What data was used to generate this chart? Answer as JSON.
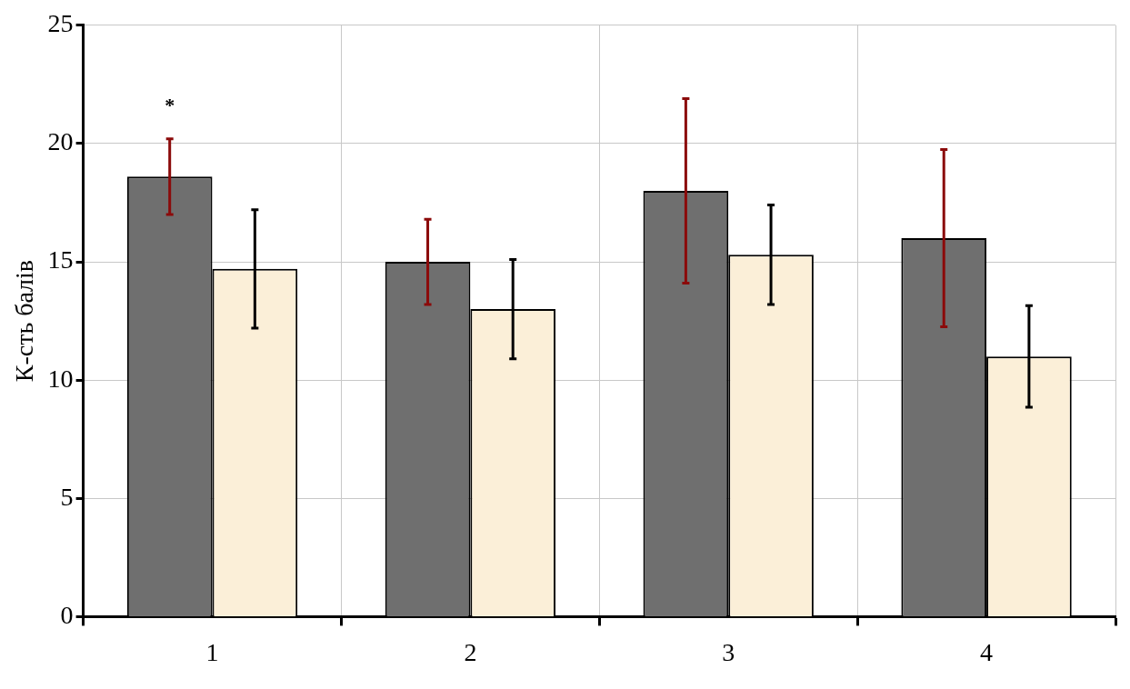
{
  "chart_data": {
    "type": "bar",
    "ylabel": "К-сть балів",
    "categories": [
      "1",
      "2",
      "3",
      "4"
    ],
    "series": [
      {
        "color": "#6f6f6f",
        "values": [
          18.6,
          15.0,
          18.0,
          16.0
        ],
        "errors": [
          1.6,
          1.8,
          3.9,
          3.75
        ]
      },
      {
        "color": "#fbefd8",
        "values": [
          14.7,
          13.0,
          15.3,
          11.0
        ],
        "errors": [
          2.5,
          2.1,
          2.1,
          2.15
        ]
      }
    ],
    "ylim": [
      0,
      25
    ],
    "yticks": [
      0,
      5,
      10,
      15,
      20,
      25
    ],
    "grid": true,
    "legend": false,
    "annotations": [
      "*"
    ]
  }
}
